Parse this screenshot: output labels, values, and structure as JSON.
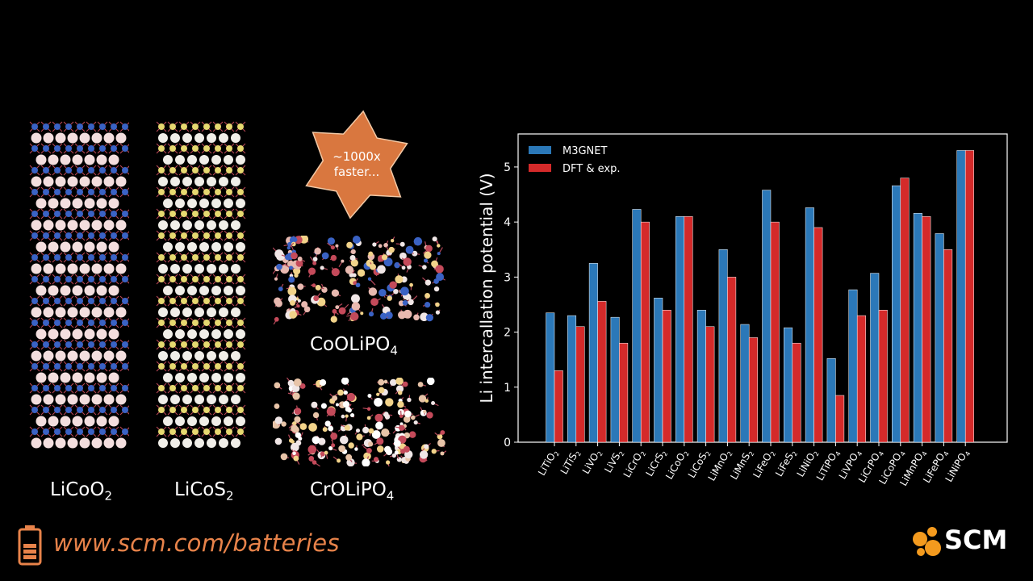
{
  "structures": [
    {
      "name": "LiCoO",
      "sub": "2"
    },
    {
      "name": "LiCoS",
      "sub": "2"
    },
    {
      "name": "CoOLiPO",
      "sub": "4"
    },
    {
      "name": "CrOLiPO",
      "sub": "4"
    }
  ],
  "badge": {
    "line1": "~1000x",
    "line2": "faster..."
  },
  "footer": {
    "url": "www.scm.com/batteries",
    "logo": "SCM"
  },
  "colors": {
    "m3gnet": "#2b78b8",
    "dft": "#d42a2a",
    "accent": "#e8834a"
  },
  "chart_data": {
    "type": "bar",
    "ylabel": "Li intercallation potential (V)",
    "xlabel": "",
    "ylim": [
      0,
      5.6
    ],
    "yticks": [
      "0",
      "1",
      "2",
      "3",
      "4",
      "5"
    ],
    "legend_position": "top-left",
    "categories": [
      {
        "base": "LiTiO",
        "sub": "2"
      },
      {
        "base": "LiTiS",
        "sub": "2"
      },
      {
        "base": "LiVO",
        "sub": "2"
      },
      {
        "base": "LiVS",
        "sub": "2"
      },
      {
        "base": "LiCrO",
        "sub": "2"
      },
      {
        "base": "LiCrS",
        "sub": "2"
      },
      {
        "base": "LiCoO",
        "sub": "2"
      },
      {
        "base": "LiCoS",
        "sub": "2"
      },
      {
        "base": "LiMnO",
        "sub": "2"
      },
      {
        "base": "LiMnS",
        "sub": "2"
      },
      {
        "base": "LiFeO",
        "sub": "2"
      },
      {
        "base": "LiFeS",
        "sub": "2"
      },
      {
        "base": "LiNiO",
        "sub": "2"
      },
      {
        "base": "LiTiPO",
        "sub": "4"
      },
      {
        "base": "LiVPO",
        "sub": "4"
      },
      {
        "base": "LiCrPO",
        "sub": "4"
      },
      {
        "base": "LiCoPO",
        "sub": "4"
      },
      {
        "base": "LiMnPO",
        "sub": "4"
      },
      {
        "base": "LiFePO",
        "sub": "4"
      },
      {
        "base": "LiNiPO",
        "sub": "4"
      }
    ],
    "series": [
      {
        "name": "M3GNET",
        "values": [
          2.35,
          2.3,
          3.25,
          2.27,
          4.23,
          2.62,
          4.1,
          2.4,
          3.5,
          2.14,
          4.58,
          2.08,
          4.26,
          1.52,
          2.77,
          3.07,
          4.66,
          4.16,
          3.79,
          5.3
        ]
      },
      {
        "name": "DFT & exp.",
        "values": [
          1.3,
          2.1,
          2.56,
          1.8,
          4.0,
          2.4,
          4.1,
          2.1,
          3.0,
          1.9,
          4.0,
          1.8,
          3.9,
          0.85,
          2.3,
          2.4,
          4.8,
          4.1,
          3.5,
          5.3
        ]
      }
    ]
  }
}
